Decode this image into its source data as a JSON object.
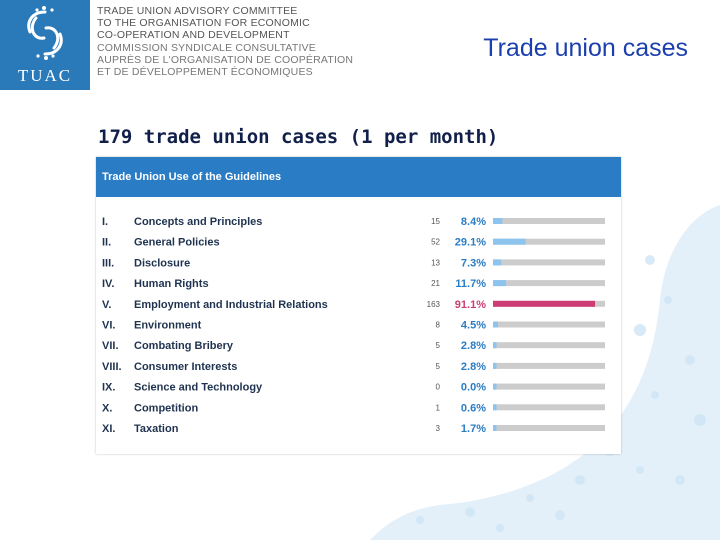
{
  "header": {
    "logo_text": "TUAC",
    "org_lines": [
      "TRADE UNION ADVISORY COMMITTEE",
      "TO THE ORGANISATION FOR ECONOMIC",
      "CO-OPERATION AND DEVELOPMENT",
      "COMMISSION SYNDICALE CONSULTATIVE",
      "AUPRÈS DE L'ORGANISATION DE COOPÉRATION",
      "ET DE DÉVELOPPEMENT ÉCONOMIQUES"
    ],
    "slide_title": "Trade union cases"
  },
  "subtitle": "179 trade union cases (1 per month)",
  "colors": {
    "brand_blue": "#2a79b9",
    "bar_default": "#8cc4ee",
    "bar_highlight": "#cc3d75",
    "bar_track": "#cccccc",
    "pct_default": "#2a7cc4",
    "pct_highlight": "#cc3d75"
  },
  "chart_data": {
    "type": "bar",
    "orientation": "horizontal",
    "title": "Trade Union Use of the Guidelines",
    "xlim": [
      0,
      100
    ],
    "highlight_index": 4,
    "rows": [
      {
        "num": "I.",
        "label": "Concepts and Principles",
        "count": "15",
        "value": 8.4,
        "pct": "8.4%"
      },
      {
        "num": "II.",
        "label": "General Policies",
        "count": "52",
        "value": 29.1,
        "pct": "29.1%"
      },
      {
        "num": "III.",
        "label": "Disclosure",
        "count": "13",
        "value": 7.3,
        "pct": "7.3%"
      },
      {
        "num": "IV.",
        "label": "Human Rights",
        "count": "21",
        "value": 11.7,
        "pct": "11.7%"
      },
      {
        "num": "V.",
        "label": "Employment and Industrial Relations",
        "count": "163",
        "value": 91.1,
        "pct": "91.1%"
      },
      {
        "num": "VI.",
        "label": "Environment",
        "count": "8",
        "value": 4.5,
        "pct": "4.5%"
      },
      {
        "num": "VII.",
        "label": "Combating Bribery",
        "count": "5",
        "value": 2.8,
        "pct": "2.8%"
      },
      {
        "num": "VIII.",
        "label": "Consumer Interests",
        "count": "5",
        "value": 2.8,
        "pct": "2.8%"
      },
      {
        "num": "IX.",
        "label": "Science and Technology",
        "count": "0",
        "value": 0.0,
        "pct": "0.0%"
      },
      {
        "num": "X.",
        "label": "Competition",
        "count": "1",
        "value": 0.6,
        "pct": "0.6%"
      },
      {
        "num": "XI.",
        "label": "Taxation",
        "count": "3",
        "value": 1.7,
        "pct": "1.7%"
      }
    ]
  }
}
